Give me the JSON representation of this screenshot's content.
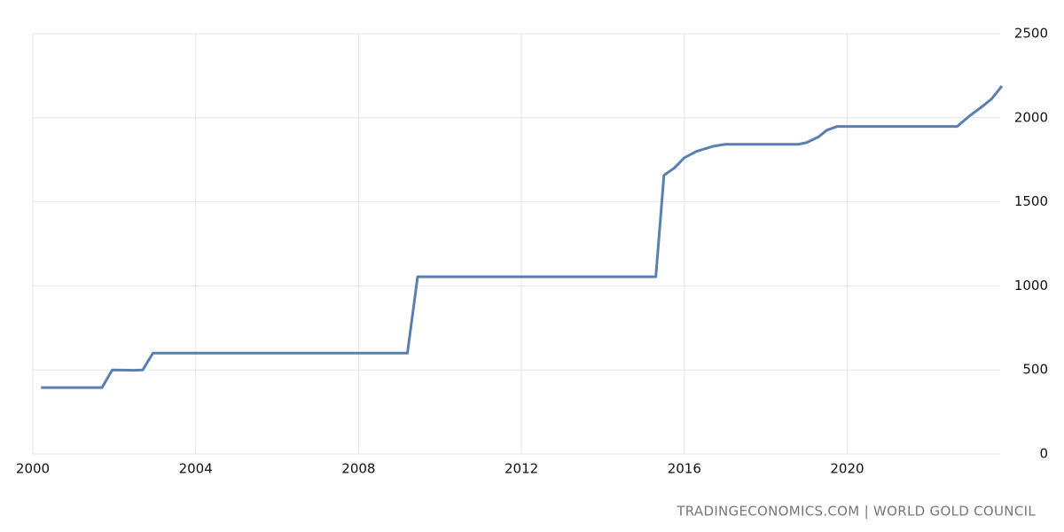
{
  "chart_data": {
    "type": "line",
    "x": [
      2000.2,
      2001.7,
      2001.95,
      2002.5,
      2002.7,
      2002.95,
      2009.2,
      2009.45,
      2015.3,
      2015.5,
      2015.75,
      2016.0,
      2016.3,
      2016.7,
      2017.0,
      2018.8,
      2019.0,
      2019.3,
      2019.5,
      2019.75,
      2022.7,
      2023.0,
      2023.3,
      2023.55,
      2023.8
    ],
    "series": [
      {
        "color": "#5a80af",
        "values": [
          395,
          395,
          500,
          498,
          500,
          600,
          600,
          1054,
          1054,
          1658,
          1700,
          1762,
          1800,
          1830,
          1842,
          1842,
          1852,
          1887,
          1926,
          1948,
          1948,
          2010,
          2064,
          2113,
          2189
        ]
      }
    ],
    "xlim": [
      2000,
      2023.8
    ],
    "xticks": [
      2000,
      2004,
      2008,
      2012,
      2016,
      2020
    ],
    "ylim": [
      0,
      2500
    ],
    "yticks": [
      0,
      500,
      1000,
      1500,
      2000,
      2500
    ],
    "grid": true,
    "source": "TRADINGECONOMICS.COM | WORLD GOLD COUNCIL"
  }
}
